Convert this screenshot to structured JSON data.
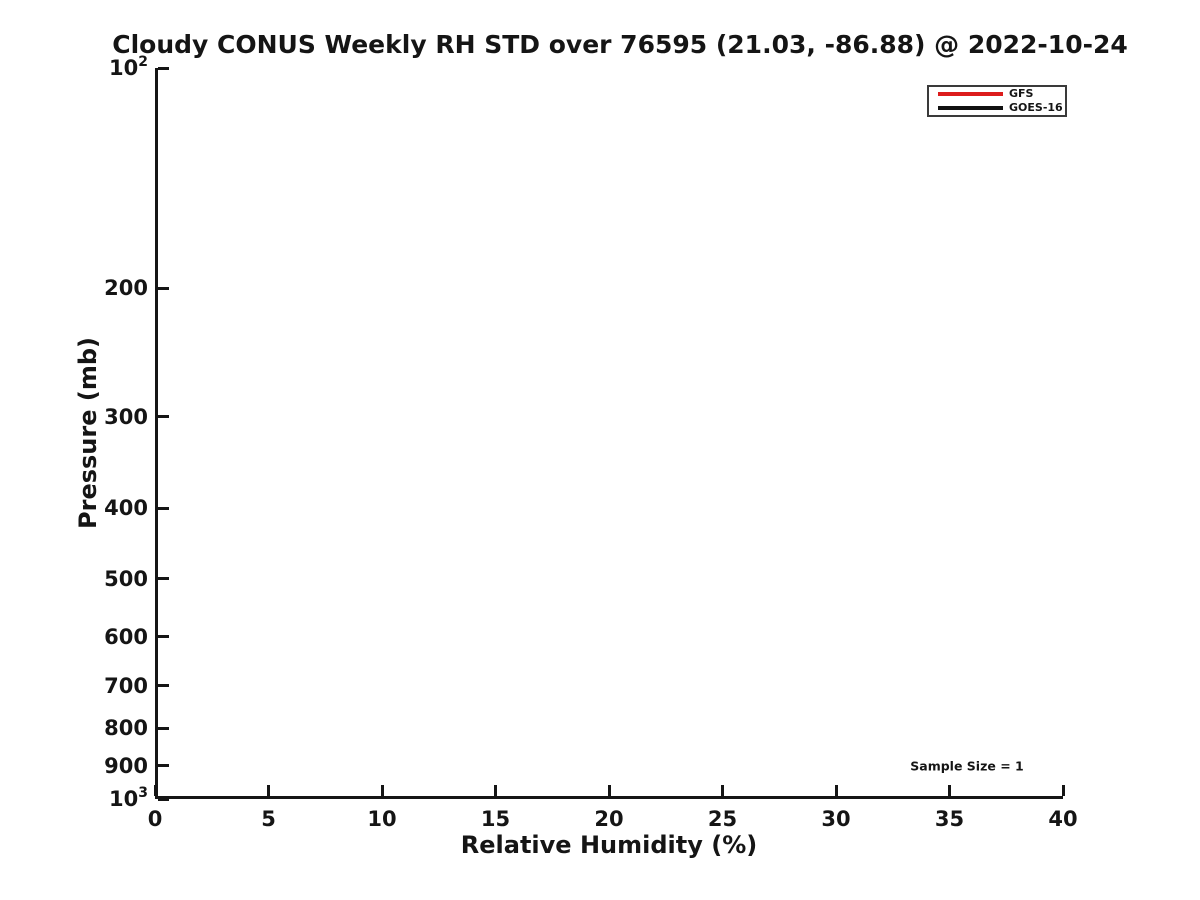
{
  "chart_data": {
    "type": "line",
    "title": "Cloudy CONUS Weekly RH STD over 76595 (21.03, -86.88) @ 2022-10-24",
    "xlabel": "Relative Humidity (%)",
    "ylabel": "Pressure (mb)",
    "xlim": [
      0,
      40
    ],
    "ylim": [
      100,
      1000
    ],
    "yscale": "log",
    "y_axis_inverted": true,
    "grid": false,
    "x_ticks": [
      {
        "value": 0,
        "label": "0"
      },
      {
        "value": 5,
        "label": "5"
      },
      {
        "value": 10,
        "label": "10"
      },
      {
        "value": 15,
        "label": "15"
      },
      {
        "value": 20,
        "label": "20"
      },
      {
        "value": 25,
        "label": "25"
      },
      {
        "value": 30,
        "label": "30"
      },
      {
        "value": 35,
        "label": "35"
      },
      {
        "value": 40,
        "label": "40"
      }
    ],
    "y_ticks": [
      {
        "value": 100,
        "label": "10",
        "sup": "2"
      },
      {
        "value": 200,
        "label": "200"
      },
      {
        "value": 300,
        "label": "300"
      },
      {
        "value": 400,
        "label": "400"
      },
      {
        "value": 500,
        "label": "500"
      },
      {
        "value": 600,
        "label": "600"
      },
      {
        "value": 700,
        "label": "700"
      },
      {
        "value": 800,
        "label": "800"
      },
      {
        "value": 900,
        "label": "900"
      },
      {
        "value": 1000,
        "label": "10",
        "sup": "3"
      }
    ],
    "series": [
      {
        "name": "GFS",
        "color": "#dc1c1c",
        "points": []
      },
      {
        "name": "GOES-16",
        "color": "#111111",
        "points": []
      }
    ],
    "legend_position": "top-right",
    "annotations": [
      {
        "text": "Sample Size = 1"
      }
    ]
  },
  "colors": {
    "background": "#ffffff",
    "axis": "#151515",
    "text": "#151515",
    "legend_border": "#3a3a3a",
    "gfs_red": "#dc1c1c",
    "goes16_black": "#111111"
  }
}
